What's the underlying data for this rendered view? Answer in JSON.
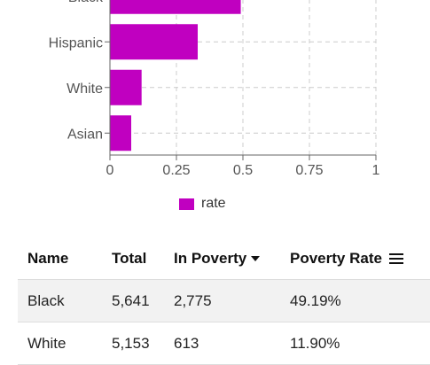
{
  "chart_data": {
    "type": "bar",
    "orientation": "horizontal",
    "categories": [
      "Black",
      "Hispanic",
      "White",
      "Asian"
    ],
    "series": [
      {
        "name": "rate",
        "values": [
          0.4919,
          0.33,
          0.119,
          0.08
        ]
      }
    ],
    "x_ticks": [
      "0",
      "0.25",
      "0.5",
      "0.75",
      "1"
    ],
    "xlim": [
      0,
      1
    ],
    "grid": true,
    "legend_placement": "bottom",
    "bar_color": "#c000c0"
  },
  "legend": {
    "label": "rate"
  },
  "table": {
    "headers": {
      "name": "Name",
      "total": "Total",
      "in_poverty": "In Poverty",
      "poverty_rate": "Poverty Rate"
    },
    "rows": [
      {
        "name": "Black",
        "total": "5,641",
        "in_poverty": "2,775",
        "poverty_rate": "49.19%"
      },
      {
        "name": "White",
        "total": "5,153",
        "in_poverty": "613",
        "poverty_rate": "11.90%"
      }
    ]
  }
}
